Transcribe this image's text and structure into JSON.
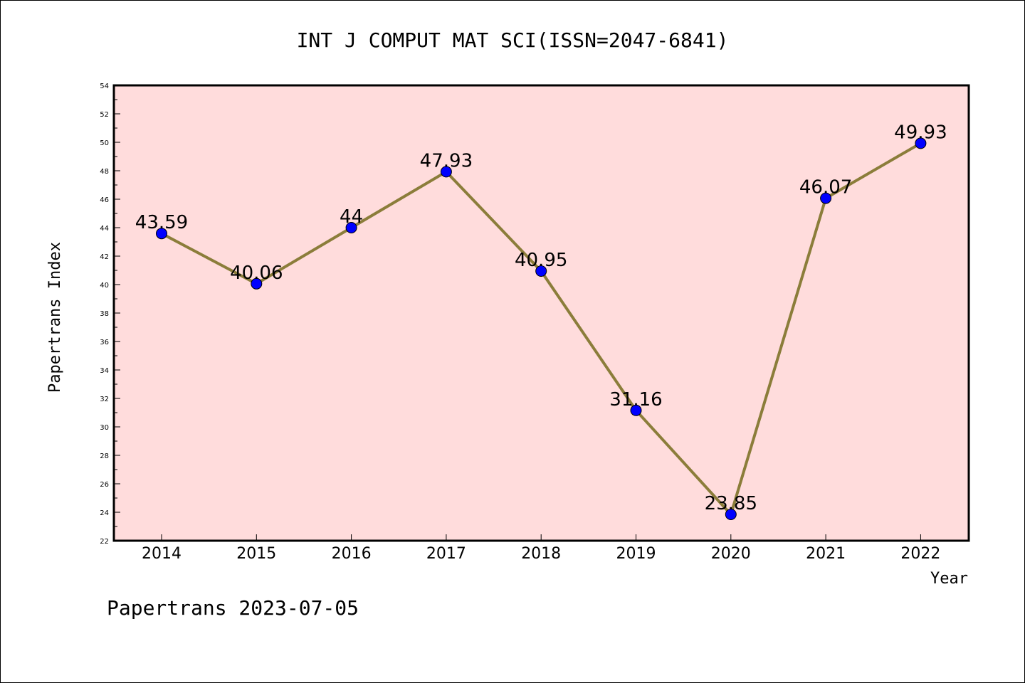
{
  "chart_data": {
    "type": "line",
    "title": "INT J COMPUT MAT SCI(ISSN=2047-6841)",
    "xlabel": "Year",
    "ylabel": "Papertrans Index",
    "categories": [
      "2014",
      "2015",
      "2016",
      "2017",
      "2018",
      "2019",
      "2020",
      "2021",
      "2022"
    ],
    "values": [
      43.59,
      40.06,
      44,
      47.93,
      40.95,
      31.16,
      23.85,
      46.07,
      49.93
    ],
    "data_labels": [
      "43.59",
      "40.06",
      "44",
      "47.93",
      "40.95",
      "31.16",
      "23.85",
      "46.07",
      "49.93"
    ],
    "yticks": [
      "22",
      "24",
      "26",
      "28",
      "30",
      "32",
      "34",
      "36",
      "38",
      "40",
      "42",
      "44",
      "46",
      "48",
      "50",
      "52",
      "54"
    ],
    "ylim": [
      22,
      54
    ],
    "grid": false,
    "colors": {
      "plot_background": "#ffdcdc",
      "line": "#8b7d3a",
      "marker": "#0000ff"
    }
  },
  "footer": "Papertrans 2023-07-05"
}
